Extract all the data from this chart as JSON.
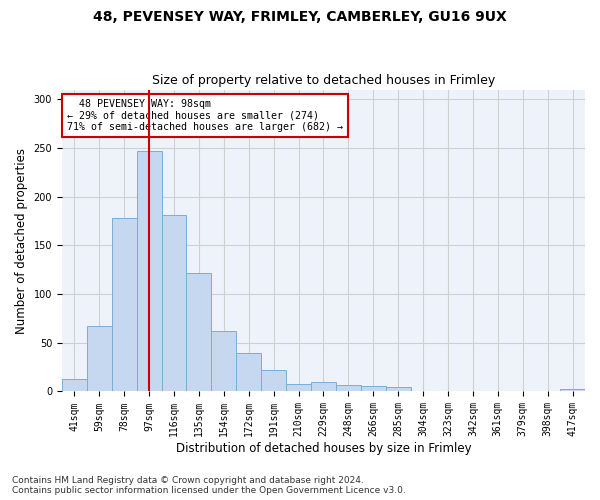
{
  "title1": "48, PEVENSEY WAY, FRIMLEY, CAMBERLEY, GU16 9UX",
  "title2": "Size of property relative to detached houses in Frimley",
  "xlabel": "Distribution of detached houses by size in Frimley",
  "ylabel": "Number of detached properties",
  "footer1": "Contains HM Land Registry data © Crown copyright and database right 2024.",
  "footer2": "Contains public sector information licensed under the Open Government Licence v3.0.",
  "annotation_line1": "  48 PEVENSEY WAY: 98sqm",
  "annotation_line2": "← 29% of detached houses are smaller (274)",
  "annotation_line3": "71% of semi-detached houses are larger (682) →",
  "bar_values": [
    13,
    67,
    178,
    247,
    181,
    122,
    62,
    40,
    22,
    8,
    10,
    7,
    6,
    5,
    0,
    0,
    0,
    0,
    0,
    0,
    3
  ],
  "bin_labels": [
    "41sqm",
    "59sqm",
    "78sqm",
    "97sqm",
    "116sqm",
    "135sqm",
    "154sqm",
    "172sqm",
    "191sqm",
    "210sqm",
    "229sqm",
    "248sqm",
    "266sqm",
    "285sqm",
    "304sqm",
    "323sqm",
    "342sqm",
    "361sqm",
    "379sqm",
    "398sqm",
    "417sqm"
  ],
  "bar_color": "#c5d8f0",
  "bar_edge_color": "#7aaed6",
  "redline_color": "#cc0000",
  "annotation_box_color": "#cc0000",
  "grid_color": "#d0d0d0",
  "ylim": [
    0,
    310
  ],
  "yticks": [
    0,
    50,
    100,
    150,
    200,
    250,
    300
  ],
  "bg_color": "#eef2fb",
  "title_fontsize": 10,
  "subtitle_fontsize": 9,
  "axis_label_fontsize": 8.5,
  "tick_fontsize": 7,
  "footer_fontsize": 6.5,
  "redline_bin_index": 3
}
